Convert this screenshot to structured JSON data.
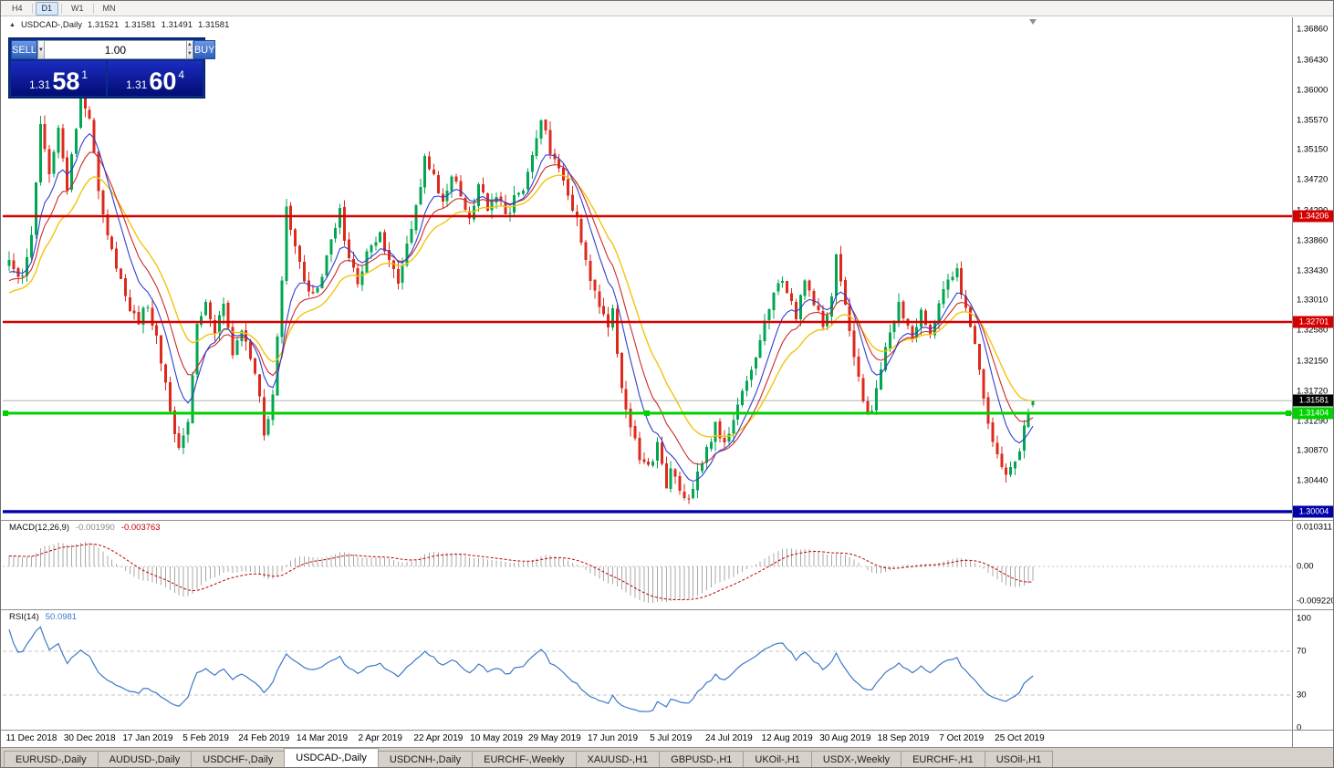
{
  "toolbar": {
    "timeframes": [
      "H4",
      "D1",
      "W1",
      "MN"
    ],
    "active": "D1"
  },
  "icons": {
    "symbol_marker": "▲",
    "dropdown_arrow": "▼",
    "spin_up": "▲",
    "spin_down": "▼"
  },
  "chart_header": {
    "symbol": "USDCAD-,Daily",
    "open": "1.31521",
    "high": "1.31581",
    "low": "1.31491",
    "close": "1.31581"
  },
  "trade_panel": {
    "sell_label": "SELL",
    "buy_label": "BUY",
    "volume": "1.00",
    "bid": {
      "main": "1.31",
      "big": "58",
      "pips": "1"
    },
    "ask": {
      "main": "1.31",
      "big": "60",
      "pips": "4"
    }
  },
  "macd": {
    "title": "MACD(12,26,9)",
    "value": "-0.001990",
    "signal": "-0.003763",
    "scale": {
      "top": "0.010311",
      "mid": "0.00",
      "bottom": "-0.009220"
    }
  },
  "rsi": {
    "title": "RSI(14)",
    "value": "50.0981",
    "scale": [
      "100",
      "70",
      "30",
      "0"
    ],
    "levels": [
      70,
      30
    ]
  },
  "tabs": {
    "items": [
      "EURUSD-,Daily",
      "AUDUSD-,Daily",
      "USDCHF-,Daily",
      "USDCAD-,Daily",
      "USDCNH-,Daily",
      "EURCHF-,Weekly",
      "XAUUSD-,H1",
      "GBPUSD-,H1",
      "UKOil-,H1",
      "USDX-,Weekly",
      "EURCHF-,H1",
      "USOil-,H1"
    ],
    "active_index": 3
  },
  "chart_data": {
    "type": "candlestick",
    "symbol": "USDCAD",
    "timeframe": "Daily",
    "last": {
      "o": 1.31521,
      "h": 1.31581,
      "l": 1.31491,
      "c": 1.31581
    },
    "bid": 1.31581,
    "ask": 1.31604,
    "current_price": 1.31581,
    "current_price_label": "1.31581",
    "candles_total": 230,
    "warmup_bars": 30,
    "warmup_start": 1.3205,
    "keypoints": [
      [
        0,
        1.3355
      ],
      [
        3,
        1.333
      ],
      [
        5,
        1.339
      ],
      [
        7,
        1.3555
      ],
      [
        9,
        1.348
      ],
      [
        11,
        1.3545
      ],
      [
        13,
        1.346
      ],
      [
        16,
        1.359
      ],
      [
        18,
        1.3555
      ],
      [
        20,
        1.345
      ],
      [
        23,
        1.337
      ],
      [
        26,
        1.33
      ],
      [
        29,
        1.327
      ],
      [
        31,
        1.3295
      ],
      [
        33,
        1.3245
      ],
      [
        36,
        1.315
      ],
      [
        38,
        1.3085
      ],
      [
        40,
        1.313
      ],
      [
        42,
        1.327
      ],
      [
        44,
        1.33
      ],
      [
        46,
        1.3255
      ],
      [
        48,
        1.329
      ],
      [
        50,
        1.323
      ],
      [
        52,
        1.3255
      ],
      [
        54,
        1.3215
      ],
      [
        56,
        1.3165
      ],
      [
        57,
        1.311
      ],
      [
        59,
        1.3165
      ],
      [
        61,
        1.333
      ],
      [
        62,
        1.344
      ],
      [
        64,
        1.3375
      ],
      [
        66,
        1.332
      ],
      [
        68,
        1.3305
      ],
      [
        70,
        1.334
      ],
      [
        72,
        1.338
      ],
      [
        74,
        1.3425
      ],
      [
        76,
        1.336
      ],
      [
        78,
        1.332
      ],
      [
        80,
        1.3365
      ],
      [
        83,
        1.339
      ],
      [
        85,
        1.3355
      ],
      [
        87,
        1.333
      ],
      [
        89,
        1.3385
      ],
      [
        91,
        1.343
      ],
      [
        93,
        1.35
      ],
      [
        95,
        1.348
      ],
      [
        97,
        1.344
      ],
      [
        99,
        1.3475
      ],
      [
        101,
        1.345
      ],
      [
        103,
        1.3415
      ],
      [
        105,
        1.3465
      ],
      [
        107,
        1.343
      ],
      [
        109,
        1.3455
      ],
      [
        111,
        1.342
      ],
      [
        113,
        1.3445
      ],
      [
        115,
        1.3465
      ],
      [
        117,
        1.351
      ],
      [
        119,
        1.356
      ],
      [
        121,
        1.3515
      ],
      [
        122,
        1.3495
      ],
      [
        124,
        1.347
      ],
      [
        126,
        1.3435
      ],
      [
        128,
        1.339
      ],
      [
        130,
        1.3335
      ],
      [
        132,
        1.329
      ],
      [
        134,
        1.327
      ],
      [
        135,
        1.3285
      ],
      [
        137,
        1.318
      ],
      [
        139,
        1.312
      ],
      [
        141,
        1.308
      ],
      [
        143,
        1.306
      ],
      [
        145,
        1.3095
      ],
      [
        147,
        1.304
      ],
      [
        148,
        1.3055
      ],
      [
        150,
        1.303
      ],
      [
        152,
        1.3015
      ],
      [
        154,
        1.3055
      ],
      [
        156,
        1.3085
      ],
      [
        158,
        1.3125
      ],
      [
        160,
        1.31
      ],
      [
        161,
        1.3115
      ],
      [
        163,
        1.3155
      ],
      [
        165,
        1.3185
      ],
      [
        167,
        1.3225
      ],
      [
        169,
        1.3265
      ],
      [
        171,
        1.3305
      ],
      [
        173,
        1.3335
      ],
      [
        174,
        1.331
      ],
      [
        176,
        1.328
      ],
      [
        178,
        1.3325
      ],
      [
        180,
        1.33
      ],
      [
        182,
        1.326
      ],
      [
        184,
        1.33
      ],
      [
        185,
        1.336
      ],
      [
        187,
        1.33
      ],
      [
        189,
        1.322
      ],
      [
        191,
        1.316
      ],
      [
        193,
        1.314
      ],
      [
        195,
        1.32
      ],
      [
        197,
        1.326
      ],
      [
        199,
        1.3295
      ],
      [
        200,
        1.328
      ],
      [
        202,
        1.325
      ],
      [
        204,
        1.328
      ],
      [
        206,
        1.326
      ],
      [
        208,
        1.3295
      ],
      [
        210,
        1.3325
      ],
      [
        212,
        1.3345
      ],
      [
        213,
        1.331
      ],
      [
        215,
        1.327
      ],
      [
        217,
        1.32
      ],
      [
        219,
        1.313
      ],
      [
        221,
        1.308
      ],
      [
        223,
        1.3048
      ],
      [
        225,
        1.3072
      ],
      [
        226,
        1.3085
      ],
      [
        227,
        1.3125
      ],
      [
        228,
        1.3148
      ],
      [
        229,
        1.31581
      ]
    ],
    "levels": [
      {
        "price": 1.34206,
        "label": "1.34206",
        "color": "#d40000",
        "width": 2.4
      },
      {
        "price": 1.32701,
        "label": "1.32701",
        "color": "#d40000",
        "width": 2.4
      },
      {
        "price": 1.31404,
        "label": "1.31404",
        "color": "#00d200",
        "width": 3,
        "selected": true
      },
      {
        "price": 1.30004,
        "label": "1.30004",
        "color": "#0000a8",
        "width": 3.4
      }
    ],
    "y_axis": [
      "1.36860",
      "1.36430",
      "1.36000",
      "1.35570",
      "1.35150",
      "1.34720",
      "1.34290",
      "1.33860",
      "1.33430",
      "1.33010",
      "1.32580",
      "1.32150",
      "1.31720",
      "1.31290",
      "1.30870",
      "1.30440",
      "1.30010"
    ],
    "x_axis": {
      "labels": [
        "11 Dec 2018",
        "30 Dec 2018",
        "17 Jan 2019",
        "5 Feb 2019",
        "24 Feb 2019",
        "14 Mar 2019",
        "2 Apr 2019",
        "22 Apr 2019",
        "10 May 2019",
        "29 May 2019",
        "17 Jun 2019",
        "5 Jul 2019",
        "24 Jul 2019",
        "12 Aug 2019",
        "30 Aug 2019",
        "18 Sep 2019",
        "7 Oct 2019",
        "25 Oct 2019"
      ],
      "first_index": 5,
      "step": 13
    },
    "moving_averages": [
      {
        "type": "ema",
        "period": 8,
        "color": "#2f3fd0"
      },
      {
        "type": "ema",
        "period": 13,
        "color": "#cc2a2a"
      },
      {
        "type": "ema",
        "period": 21,
        "color": "#f2c40f"
      }
    ],
    "colors": {
      "up": "#00a651",
      "down": "#dd2a1c",
      "ma_fast": "#2f3fd0",
      "ma_mid": "#cc2a2a",
      "ma_slow": "#f2c40f",
      "rsi": "#3c78c8",
      "macd_hist": "#a8a8a8",
      "macd_signal": "#c00000"
    }
  }
}
